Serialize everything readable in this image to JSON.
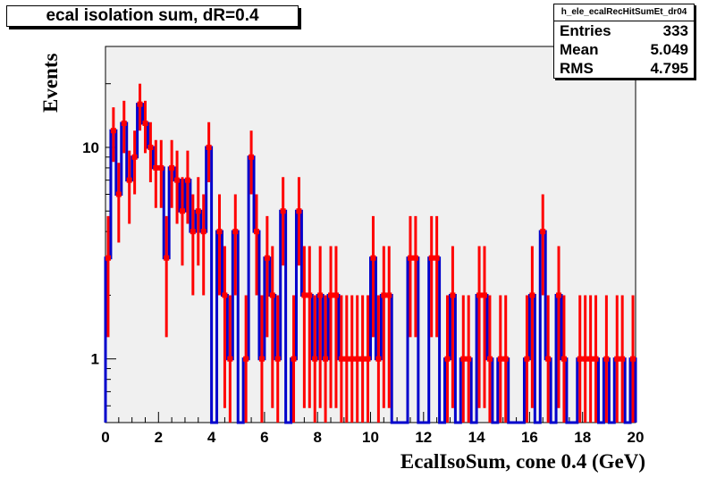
{
  "chart_data": {
    "type": "histogram",
    "title": "ecal isolation sum, dR=0.4",
    "xlabel": "EcalIsoSum, cone 0.4 (GeV)",
    "ylabel": "Events",
    "xlim": [
      0,
      20
    ],
    "ylim": [
      0.5,
      30
    ],
    "y_scale": "log",
    "x_ticks": [
      "0",
      "2",
      "4",
      "6",
      "8",
      "10",
      "12",
      "14",
      "16",
      "18",
      "20"
    ],
    "y_ticks": [
      "1",
      "10"
    ],
    "bin_width": 0.2,
    "x_start": 0,
    "counts": [
      3,
      12,
      6,
      13,
      7,
      9,
      16,
      13,
      10,
      8,
      8,
      3,
      8,
      7,
      5,
      7,
      4,
      5,
      4,
      10,
      0,
      4,
      2,
      1,
      4,
      0,
      1,
      9,
      4,
      1,
      3,
      2,
      1,
      5,
      0,
      1,
      5,
      2,
      2,
      1,
      2,
      1,
      2,
      2,
      1,
      1,
      1,
      1,
      1,
      1,
      3,
      1,
      2,
      2,
      0,
      0,
      0,
      3,
      3,
      0,
      0,
      3,
      3,
      0,
      1,
      2,
      0,
      1,
      1,
      0,
      2,
      2,
      1,
      0,
      1,
      1,
      0,
      0,
      0,
      1,
      2,
      0,
      4,
      1,
      0,
      2,
      1,
      0,
      0,
      1,
      1,
      1,
      1,
      0,
      1,
      0,
      1,
      1,
      0,
      1
    ],
    "line_color": "#0000cc",
    "error_color": "#ff0000",
    "frame_fill": "#f0f0f0"
  },
  "stats": {
    "name": "h_ele_ecalRecHitSumEt_dr04",
    "rows": [
      {
        "label": "Entries",
        "value": "333"
      },
      {
        "label": "Mean",
        "value": "5.049"
      },
      {
        "label": "RMS",
        "value": "4.795"
      }
    ]
  }
}
